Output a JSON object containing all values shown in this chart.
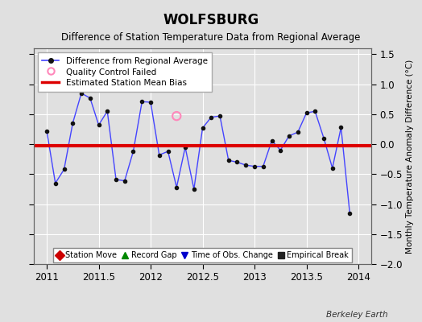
{
  "title": "WOLFSBURG",
  "subtitle": "Difference of Station Temperature Data from Regional Average",
  "ylabel_right": "Monthly Temperature Anomaly Difference (°C)",
  "watermark": "Berkeley Earth",
  "xlim": [
    2010.875,
    2014.125
  ],
  "ylim": [
    -2.0,
    1.6
  ],
  "yticks": [
    -2.0,
    -1.5,
    -1.0,
    -0.5,
    0.0,
    0.5,
    1.0,
    1.5
  ],
  "xticks": [
    2011.0,
    2011.5,
    2012.0,
    2012.5,
    2013.0,
    2013.5,
    2014.0
  ],
  "mean_bias": -0.03,
  "background_color": "#e0e0e0",
  "plot_bg_color": "#e0e0e0",
  "line_color": "#4444ff",
  "bias_color": "#dd0000",
  "qc_color": "#ff88bb",
  "data_x": [
    2011.0,
    2011.083,
    2011.167,
    2011.25,
    2011.333,
    2011.417,
    2011.5,
    2011.583,
    2011.667,
    2011.75,
    2011.833,
    2011.917,
    2012.0,
    2012.083,
    2012.167,
    2012.25,
    2012.333,
    2012.417,
    2012.5,
    2012.583,
    2012.667,
    2012.75,
    2012.833,
    2012.917,
    2013.0,
    2013.083,
    2013.167,
    2013.25,
    2013.333,
    2013.417,
    2013.5,
    2013.583,
    2013.667,
    2013.75,
    2013.833,
    2013.917
  ],
  "data_y": [
    0.22,
    -0.65,
    -0.42,
    0.35,
    0.85,
    0.77,
    0.32,
    0.55,
    -0.59,
    -0.61,
    -0.12,
    0.71,
    0.7,
    -0.18,
    -0.12,
    -0.72,
    -0.05,
    -0.75,
    0.27,
    0.45,
    0.47,
    -0.27,
    -0.3,
    -0.35,
    -0.37,
    -0.37,
    0.06,
    -0.1,
    0.14,
    0.2,
    0.52,
    0.55,
    0.1,
    -0.4,
    0.28,
    -1.15
  ],
  "qc_x": [
    2012.25
  ],
  "qc_y": [
    0.47
  ],
  "legend1_entries": [
    {
      "label": "Difference from Regional Average"
    },
    {
      "label": "Quality Control Failed"
    },
    {
      "label": "Estimated Station Mean Bias"
    }
  ],
  "legend2_entries": [
    {
      "label": "Station Move",
      "color": "#cc0000",
      "marker": "D"
    },
    {
      "label": "Record Gap",
      "color": "#008800",
      "marker": "^"
    },
    {
      "label": "Time of Obs. Change",
      "color": "#0000cc",
      "marker": "v"
    },
    {
      "label": "Empirical Break",
      "color": "#222222",
      "marker": "s"
    }
  ]
}
